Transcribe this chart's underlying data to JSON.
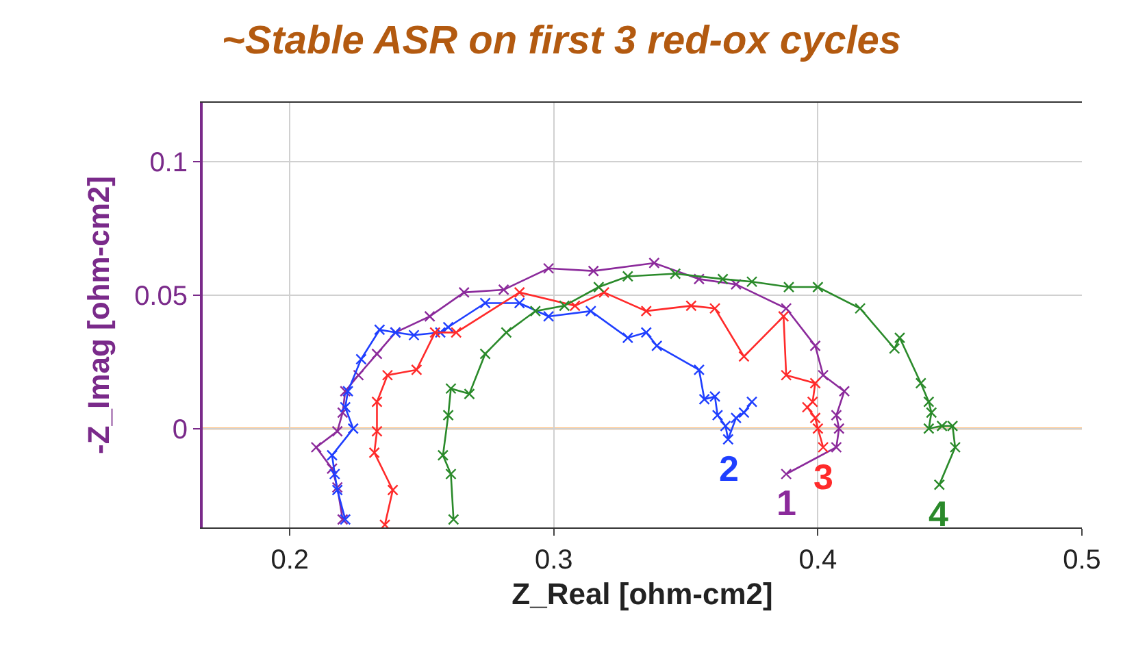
{
  "chart_data": {
    "type": "line",
    "title": "~Stable ASR on first 3 red-ox cycles",
    "xlabel": "Z_Real [ohm-cm2]",
    "ylabel": "-Z_Imag [ohm-cm2]",
    "xlim": [
      0.167,
      0.5
    ],
    "xticks": [
      0.2,
      0.3,
      0.4,
      0.5
    ],
    "ylim": [
      -0.037,
      0.122
    ],
    "yticks": [
      0,
      0.05,
      0.1
    ],
    "grid": true,
    "legend": false,
    "marker": "cross",
    "line_style": "solid",
    "ref_lines": [
      {
        "axis": "y",
        "value": 0,
        "color": "#ffa040"
      }
    ],
    "series": [
      {
        "name": "1",
        "color": "#8b2a9b",
        "x": [
          0.22,
          0.218,
          0.216,
          0.21,
          0.218,
          0.22,
          0.221,
          0.226,
          0.233,
          0.24,
          0.253,
          0.266,
          0.281,
          0.298,
          0.315,
          0.338,
          0.355,
          0.369,
          0.388,
          0.399,
          0.402,
          0.41,
          0.407,
          0.408,
          0.407,
          0.388
        ],
        "values": [
          -0.034,
          -0.022,
          -0.015,
          -0.007,
          -0.001,
          0.006,
          0.014,
          0.02,
          0.028,
          0.036,
          0.042,
          0.051,
          0.052,
          0.06,
          0.059,
          0.062,
          0.056,
          0.054,
          0.045,
          0.031,
          0.02,
          0.014,
          0.005,
          0.0,
          -0.007,
          -0.017
        ]
      },
      {
        "name": "2",
        "color": "#1f3fff",
        "x": [
          0.221,
          0.218,
          0.217,
          0.216,
          0.224,
          0.221,
          0.222,
          0.227,
          0.234,
          0.24,
          0.247,
          0.257,
          0.26,
          0.274,
          0.287,
          0.298,
          0.314,
          0.328,
          0.335,
          0.339,
          0.355,
          0.357,
          0.361,
          0.362,
          0.365,
          0.366,
          0.369,
          0.372,
          0.375
        ],
        "values": [
          -0.034,
          -0.023,
          -0.017,
          -0.01,
          0.0,
          0.008,
          0.014,
          0.026,
          0.037,
          0.036,
          0.035,
          0.036,
          0.038,
          0.047,
          0.047,
          0.042,
          0.044,
          0.034,
          0.036,
          0.031,
          0.022,
          0.011,
          0.012,
          0.005,
          0.001,
          -0.004,
          0.004,
          0.006,
          0.01
        ]
      },
      {
        "name": "3",
        "color": "#ff2a2a",
        "x": [
          0.236,
          0.239,
          0.232,
          0.233,
          0.233,
          0.237,
          0.248,
          0.255,
          0.263,
          0.287,
          0.308,
          0.319,
          0.335,
          0.352,
          0.361,
          0.372,
          0.387,
          0.388,
          0.399,
          0.398,
          0.396,
          0.399,
          0.4,
          0.402
        ],
        "values": [
          -0.036,
          -0.023,
          -0.009,
          -0.001,
          0.01,
          0.02,
          0.022,
          0.036,
          0.036,
          0.051,
          0.046,
          0.051,
          0.044,
          0.046,
          0.045,
          0.027,
          0.042,
          0.02,
          0.017,
          0.01,
          0.008,
          0.004,
          0.0,
          -0.007
        ]
      },
      {
        "name": "4",
        "color": "#2a8a2a",
        "x": [
          0.262,
          0.261,
          0.258,
          0.26,
          0.261,
          0.268,
          0.274,
          0.282,
          0.293,
          0.304,
          0.317,
          0.328,
          0.346,
          0.364,
          0.375,
          0.389,
          0.4,
          0.416,
          0.429,
          0.431,
          0.439,
          0.442,
          0.443,
          0.442,
          0.447,
          0.451,
          0.452,
          0.446
        ],
        "values": [
          -0.034,
          -0.017,
          -0.01,
          0.005,
          0.015,
          0.013,
          0.028,
          0.036,
          0.044,
          0.046,
          0.053,
          0.057,
          0.058,
          0.056,
          0.055,
          0.053,
          0.053,
          0.045,
          0.03,
          0.034,
          0.017,
          0.01,
          0.006,
          0.0,
          0.001,
          0.001,
          -0.007,
          -0.021
        ]
      }
    ]
  }
}
